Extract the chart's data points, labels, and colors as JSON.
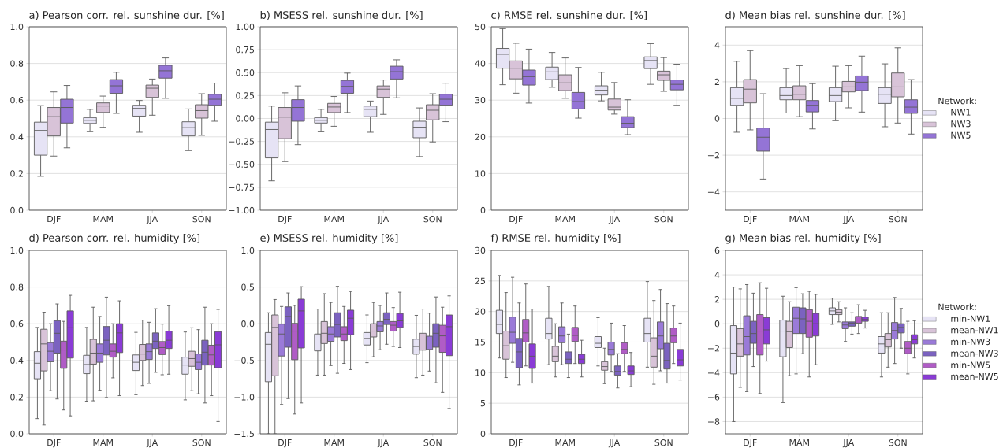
{
  "chart_data": [
    {
      "type": "box",
      "title": "a) Pearson corr. rel. sunshine dur. [%]",
      "categories": [
        "DJF",
        "MAM",
        "JJA",
        "SON"
      ],
      "ylim": [
        0,
        1
      ],
      "yticks": [
        {
          "value": 0,
          "label": "0.0"
        },
        {
          "value": 0.2,
          "label": "0.2"
        },
        {
          "value": 0.4,
          "label": "0.4"
        },
        {
          "value": 0.6,
          "label": "0.6"
        },
        {
          "value": 0.8,
          "label": "0.8"
        },
        {
          "value": 1,
          "label": "1.0"
        }
      ],
      "grid": "y",
      "series": [
        {
          "color": "#e6e3f5",
          "boxes": [
            {
              "low": 0.185,
              "q1": 0.3,
              "median": 0.435,
              "q3": 0.48,
              "high": 0.57
            },
            {
              "low": 0.428,
              "q1": 0.473,
              "median": 0.49,
              "q3": 0.505,
              "high": 0.55
            },
            {
              "low": 0.425,
              "q1": 0.513,
              "median": 0.555,
              "q3": 0.572,
              "high": 0.598
            },
            {
              "low": 0.325,
              "q1": 0.405,
              "median": 0.45,
              "q3": 0.482,
              "high": 0.552
            }
          ]
        },
        {
          "color": "#d8c3d8",
          "boxes": [
            {
              "low": 0.295,
              "q1": 0.405,
              "median": 0.51,
              "q3": 0.56,
              "high": 0.645
            },
            {
              "low": 0.452,
              "q1": 0.533,
              "median": 0.568,
              "q3": 0.585,
              "high": 0.622
            },
            {
              "low": 0.518,
              "q1": 0.615,
              "median": 0.665,
              "q3": 0.682,
              "high": 0.715
            },
            {
              "low": 0.408,
              "q1": 0.502,
              "median": 0.543,
              "q3": 0.575,
              "high": 0.635
            }
          ]
        },
        {
          "color": "#9474d6",
          "boxes": [
            {
              "low": 0.34,
              "q1": 0.475,
              "median": 0.56,
              "q3": 0.605,
              "high": 0.68
            },
            {
              "low": 0.528,
              "q1": 0.637,
              "median": 0.678,
              "q3": 0.712,
              "high": 0.752
            },
            {
              "low": 0.61,
              "q1": 0.72,
              "median": 0.76,
              "q3": 0.79,
              "high": 0.83
            },
            {
              "low": 0.485,
              "q1": 0.572,
              "median": 0.605,
              "q3": 0.632,
              "high": 0.693
            }
          ]
        }
      ]
    },
    {
      "type": "box",
      "title": "b) MSESS rel. sunshine dur. [%]",
      "categories": [
        "DJF",
        "MAM",
        "JJA",
        "SON"
      ],
      "ylim": [
        -1,
        1
      ],
      "yticks": [
        {
          "value": -1,
          "label": "−1.00"
        },
        {
          "value": -0.75,
          "label": "−0.75"
        },
        {
          "value": -0.5,
          "label": "−0.50"
        },
        {
          "value": -0.25,
          "label": "−0.25"
        },
        {
          "value": 0,
          "label": "0.00"
        },
        {
          "value": 0.25,
          "label": "0.25"
        },
        {
          "value": 0.5,
          "label": "0.50"
        },
        {
          "value": 0.75,
          "label": "0.75"
        },
        {
          "value": 1,
          "label": "1.00"
        }
      ],
      "grid": "y",
      "series": [
        {
          "color": "#e6e3f5",
          "boxes": [
            {
              "low": -0.68,
              "q1": -0.43,
              "median": -0.12,
              "q3": -0.04,
              "high": 0.135
            },
            {
              "low": -0.145,
              "q1": -0.05,
              "median": -0.02,
              "q3": 0.01,
              "high": 0.1
            },
            {
              "low": -0.15,
              "q1": 0.02,
              "median": 0.1,
              "q3": 0.135,
              "high": 0.19
            },
            {
              "low": -0.415,
              "q1": -0.21,
              "median": -0.095,
              "q3": -0.03,
              "high": 0.115
            }
          ]
        },
        {
          "color": "#d8c3d8",
          "boxes": [
            {
              "low": -0.47,
              "q1": -0.22,
              "median": 0.015,
              "q3": 0.12,
              "high": 0.28
            },
            {
              "low": -0.085,
              "q1": 0.065,
              "median": 0.125,
              "q3": 0.165,
              "high": 0.24
            },
            {
              "low": 0.045,
              "q1": 0.23,
              "median": 0.32,
              "q3": 0.355,
              "high": 0.42
            },
            {
              "low": -0.255,
              "q1": -0.015,
              "median": 0.09,
              "q3": 0.15,
              "high": 0.27
            }
          ]
        },
        {
          "color": "#9474d6",
          "boxes": [
            {
              "low": -0.285,
              "q1": -0.03,
              "median": 0.12,
              "q3": 0.205,
              "high": 0.355
            },
            {
              "low": 0.065,
              "q1": 0.275,
              "median": 0.35,
              "q3": 0.415,
              "high": 0.495
            },
            {
              "low": 0.225,
              "q1": 0.43,
              "median": 0.51,
              "q3": 0.57,
              "high": 0.64
            },
            {
              "low": -0.035,
              "q1": 0.145,
              "median": 0.21,
              "q3": 0.265,
              "high": 0.385
            }
          ]
        }
      ]
    },
    {
      "type": "box",
      "title": "c) RMSE rel. sunshine dur. [%]",
      "categories": [
        "DJF",
        "MAM",
        "JJA",
        "SON"
      ],
      "ylim": [
        0,
        50
      ],
      "yticks": [
        0,
        10,
        20,
        30,
        40,
        50
      ],
      "grid": "y",
      "series": [
        {
          "color": "#e6e3f5",
          "boxes": [
            {
              "low": 34.2,
              "q1": 38.7,
              "median": 42.5,
              "q3": 44.1,
              "high": 49.5
            },
            {
              "low": 33.5,
              "q1": 35.6,
              "median": 37.7,
              "q3": 39.0,
              "high": 43.0
            },
            {
              "low": 29.8,
              "q1": 31.4,
              "median": 32.7,
              "q3": 33.9,
              "high": 37.6
            },
            {
              "low": 34.3,
              "q1": 38.6,
              "median": 40.8,
              "q3": 41.8,
              "high": 45.4
            }
          ]
        },
        {
          "color": "#d8c3d8",
          "boxes": [
            {
              "low": 31.9,
              "q1": 35.8,
              "median": 38.7,
              "q3": 40.7,
              "high": 45.5
            },
            {
              "low": 30.5,
              "q1": 32.6,
              "median": 34.7,
              "q3": 36.9,
              "high": 41.5
            },
            {
              "low": 26.2,
              "q1": 27.3,
              "median": 28.1,
              "q3": 30.3,
              "high": 34.8
            },
            {
              "low": 32.4,
              "q1": 35.4,
              "median": 36.9,
              "q3": 37.9,
              "high": 41.6
            }
          ]
        },
        {
          "color": "#9474d6",
          "boxes": [
            {
              "low": 29.2,
              "q1": 34.1,
              "median": 36.4,
              "q3": 38.2,
              "high": 43.9
            },
            {
              "low": 25.1,
              "q1": 27.6,
              "median": 29.6,
              "q3": 32.1,
              "high": 38.9
            },
            {
              "low": 20.6,
              "q1": 22.5,
              "median": 23.7,
              "q3": 25.5,
              "high": 30.1
            },
            {
              "low": 28.6,
              "q1": 32.8,
              "median": 34.3,
              "q3": 35.5,
              "high": 39.8
            }
          ]
        }
      ]
    },
    {
      "type": "box",
      "title": "d) Mean bias rel. sunshine dur. [%]",
      "categories": [
        "DJF",
        "MAM",
        "JJA",
        "SON"
      ],
      "ylim": [
        -5,
        5
      ],
      "yticks": [
        {
          "value": -4,
          "label": "−4"
        },
        {
          "value": -2,
          "label": "−2"
        },
        {
          "value": 0,
          "label": "0"
        },
        {
          "value": 2,
          "label": "2"
        },
        {
          "value": 4,
          "label": "4"
        }
      ],
      "grid": "y",
      "legend": "right",
      "legend_title": "Network:",
      "series": [
        {
          "name": "NW1",
          "color": "#e6e3f5",
          "boxes": [
            {
              "low": -0.75,
              "q1": 0.72,
              "median": 1.1,
              "q3": 1.68,
              "high": 3.12
            },
            {
              "low": 0.3,
              "q1": 1.02,
              "median": 1.25,
              "q3": 1.68,
              "high": 2.72
            },
            {
              "low": -0.12,
              "q1": 0.92,
              "median": 1.25,
              "q3": 1.68,
              "high": 2.85
            },
            {
              "low": -0.45,
              "q1": 0.82,
              "median": 1.32,
              "q3": 1.68,
              "high": 2.98
            }
          ]
        },
        {
          "name": "NW3",
          "color": "#d8c3d8",
          "boxes": [
            {
              "low": -0.62,
              "q1": 0.85,
              "median": 1.6,
              "q3": 2.12,
              "high": 3.7
            },
            {
              "low": 0.1,
              "q1": 1.02,
              "median": 1.32,
              "q3": 1.78,
              "high": 2.88
            },
            {
              "low": 0.58,
              "q1": 1.45,
              "median": 1.72,
              "q3": 2.02,
              "high": 2.88
            },
            {
              "low": -0.25,
              "q1": 1.18,
              "median": 1.72,
              "q3": 2.48,
              "high": 3.85
            }
          ]
        },
        {
          "name": "NW5",
          "color": "#9474d6",
          "boxes": [
            {
              "low": -3.3,
              "q1": -1.78,
              "median": -1.02,
              "q3": -0.52,
              "high": 1.35
            },
            {
              "low": -0.57,
              "q1": 0.36,
              "median": 0.72,
              "q3": 0.98,
              "high": 1.9
            },
            {
              "low": 0.35,
              "q1": 1.52,
              "median": 1.98,
              "q3": 2.32,
              "high": 3.4
            },
            {
              "low": -0.85,
              "q1": 0.28,
              "median": 0.62,
              "q3": 1.02,
              "high": 2.12
            }
          ]
        }
      ]
    },
    {
      "type": "box",
      "title": "d) Pearson corr. rel. humidity [%]",
      "categories": [
        "DJF",
        "MAM",
        "JJA",
        "SON"
      ],
      "ylim": [
        0,
        1
      ],
      "yticks": [
        {
          "value": 0,
          "label": "0.0"
        },
        {
          "value": 0.2,
          "label": "0.2"
        },
        {
          "value": 0.4,
          "label": "0.4"
        },
        {
          "value": 0.6,
          "label": "0.6"
        },
        {
          "value": 0.8,
          "label": "0.8"
        },
        {
          "value": 1,
          "label": "1.0"
        }
      ],
      "grid": "y",
      "series": [
        {
          "color": "#e6e3f5",
          "boxes": [
            {
              "low": 0.083,
              "q1": 0.3,
              "median": 0.385,
              "q3": 0.448,
              "high": 0.58
            },
            {
              "low": 0.178,
              "q1": 0.328,
              "median": 0.378,
              "q3": 0.428,
              "high": 0.58
            },
            {
              "low": 0.213,
              "q1": 0.345,
              "median": 0.39,
              "q3": 0.43,
              "high": 0.553
            },
            {
              "low": 0.185,
              "q1": 0.325,
              "median": 0.375,
              "q3": 0.418,
              "high": 0.555
            }
          ]
        },
        {
          "color": "#d8c3d8",
          "boxes": [
            {
              "low": 0.048,
              "q1": 0.343,
              "median": 0.49,
              "q3": 0.57,
              "high": 0.663
            },
            {
              "low": 0.18,
              "q1": 0.38,
              "median": 0.44,
              "q3": 0.515,
              "high": 0.69
            },
            {
              "low": 0.263,
              "q1": 0.4,
              "median": 0.435,
              "q3": 0.487,
              "high": 0.62
            },
            {
              "low": 0.235,
              "q1": 0.368,
              "median": 0.41,
              "q3": 0.45,
              "high": 0.578
            }
          ]
        },
        {
          "color": "#9a7ad8",
          "boxes": [
            {
              "low": 0.235,
              "q1": 0.393,
              "median": 0.45,
              "q3": 0.497,
              "high": 0.6
            },
            {
              "low": 0.238,
              "q1": 0.39,
              "median": 0.44,
              "q3": 0.49,
              "high": 0.64
            },
            {
              "low": 0.275,
              "q1": 0.405,
              "median": 0.448,
              "q3": 0.49,
              "high": 0.608
            },
            {
              "low": 0.218,
              "q1": 0.35,
              "median": 0.39,
              "q3": 0.435,
              "high": 0.568
            }
          ]
        },
        {
          "color": "#7b62c0",
          "boxes": [
            {
              "low": 0.19,
              "q1": 0.44,
              "median": 0.548,
              "q3": 0.617,
              "high": 0.708
            },
            {
              "low": 0.198,
              "q1": 0.43,
              "median": 0.51,
              "q3": 0.585,
              "high": 0.745
            },
            {
              "low": 0.335,
              "q1": 0.465,
              "median": 0.505,
              "q3": 0.55,
              "high": 0.682
            },
            {
              "low": 0.168,
              "q1": 0.375,
              "median": 0.445,
              "q3": 0.51,
              "high": 0.69
            }
          ]
        },
        {
          "color": "#b05cc6",
          "boxes": [
            {
              "low": 0.13,
              "q1": 0.357,
              "median": 0.457,
              "q3": 0.505,
              "high": 0.613
            },
            {
              "low": 0.305,
              "q1": 0.418,
              "median": 0.45,
              "q3": 0.49,
              "high": 0.6
            },
            {
              "low": 0.322,
              "q1": 0.432,
              "median": 0.47,
              "q3": 0.503,
              "high": 0.598
            },
            {
              "low": 0.208,
              "q1": 0.375,
              "median": 0.43,
              "q3": 0.483,
              "high": 0.6
            }
          ]
        },
        {
          "color": "#8a3bd6",
          "boxes": [
            {
              "low": 0.098,
              "q1": 0.413,
              "median": 0.578,
              "q3": 0.67,
              "high": 0.755
            },
            {
              "low": 0.208,
              "q1": 0.443,
              "median": 0.55,
              "q3": 0.6,
              "high": 0.725
            },
            {
              "low": 0.325,
              "q1": 0.465,
              "median": 0.51,
              "q3": 0.56,
              "high": 0.698
            },
            {
              "low": 0.067,
              "q1": 0.36,
              "median": 0.485,
              "q3": 0.557,
              "high": 0.678
            }
          ]
        }
      ]
    },
    {
      "type": "box",
      "title": "e) MSESS rel. humidity [%]",
      "categories": [
        "DJF",
        "MAM",
        "JJA",
        "SON"
      ],
      "ylim": [
        -1.5,
        1
      ],
      "yticks": [
        {
          "value": -1.5,
          "label": "−1.5"
        },
        {
          "value": -1,
          "label": "−1.0"
        },
        {
          "value": -0.5,
          "label": "−0.5"
        },
        {
          "value": 0,
          "label": "0.0"
        },
        {
          "value": 0.5,
          "label": "0.5"
        },
        {
          "value": 1,
          "label": "1.0"
        }
      ],
      "grid": "y",
      "series": [
        {
          "color": "#e6e3f5",
          "boxes": [
            {
              "low": -1.5,
              "q1": -0.79,
              "median": -0.28,
              "q3": -0.12,
              "high": 0.15
            },
            {
              "low": -0.7,
              "q1": -0.37,
              "median": -0.25,
              "q3": -0.14,
              "high": 0.2
            },
            {
              "low": -0.53,
              "q1": -0.29,
              "median": -0.2,
              "q3": -0.12,
              "high": 0.12
            },
            {
              "low": -0.735,
              "q1": -0.415,
              "median": -0.31,
              "q3": -0.21,
              "high": 0.115
            }
          ]
        },
        {
          "color": "#d8c3d8",
          "boxes": [
            {
              "low": -1.5,
              "q1": -0.71,
              "median": -0.05,
              "q3": 0.12,
              "high": 0.33
            },
            {
              "low": -0.7,
              "q1": -0.27,
              "median": -0.13,
              "q3": 0.03,
              "high": 0.41
            },
            {
              "low": -0.45,
              "q1": -0.18,
              "median": -0.1,
              "q3": 0.0,
              "high": 0.29
            },
            {
              "low": -0.7,
              "q1": -0.36,
              "median": -0.25,
              "q3": -0.13,
              "high": 0.2
            }
          ]
        },
        {
          "color": "#9a7ad8",
          "boxes": [
            {
              "low": -1.1,
              "q1": -0.44,
              "median": -0.14,
              "q3": -0.005,
              "high": 0.235
            },
            {
              "low": -0.57,
              "q1": -0.24,
              "median": -0.14,
              "q3": -0.04,
              "high": 0.29
            },
            {
              "low": -0.355,
              "q1": -0.11,
              "median": -0.03,
              "q3": 0.03,
              "high": 0.25
            },
            {
              "low": -0.645,
              "q1": -0.35,
              "median": -0.25,
              "q3": -0.17,
              "high": 0.145
            }
          ]
        },
        {
          "color": "#7b62c0",
          "boxes": [
            {
              "low": -1.02,
              "q1": -0.32,
              "median": 0.1,
              "q3": 0.23,
              "high": 0.42
            },
            {
              "low": -0.675,
              "q1": -0.18,
              "median": -0.01,
              "q3": 0.15,
              "high": 0.51
            },
            {
              "low": -0.28,
              "q1": -0.01,
              "median": 0.06,
              "q3": 0.15,
              "high": 0.42
            },
            {
              "low": -0.805,
              "q1": -0.32,
              "median": -0.13,
              "q3": 0.0,
              "high": 0.365
            }
          ]
        },
        {
          "color": "#b05cc6",
          "boxes": [
            {
              "low": -1.23,
              "q1": -0.49,
              "median": -0.1,
              "q3": 0.005,
              "high": 0.25
            },
            {
              "low": -0.54,
              "q1": -0.23,
              "median": -0.14,
              "q3": -0.04,
              "high": 0.235
            },
            {
              "low": -0.31,
              "q1": -0.1,
              "median": -0.02,
              "q3": 0.03,
              "high": 0.22
            },
            {
              "low": -0.935,
              "q1": -0.39,
              "median": -0.165,
              "q3": -0.02,
              "high": 0.225
            }
          ]
        },
        {
          "color": "#8a3bd6",
          "boxes": [
            {
              "low": -1.08,
              "q1": -0.33,
              "median": 0.175,
              "q3": 0.335,
              "high": 0.505
            },
            {
              "low": -0.625,
              "q1": -0.15,
              "median": 0.075,
              "q3": 0.185,
              "high": 0.44
            },
            {
              "low": -0.325,
              "q1": -0.05,
              "median": 0.04,
              "q3": 0.14,
              "high": 0.43
            },
            {
              "low": -1.155,
              "q1": -0.435,
              "median": -0.04,
              "q3": 0.12,
              "high": 0.38
            }
          ]
        }
      ]
    },
    {
      "type": "box",
      "title": "f) RMSE rel. humidity [%]",
      "categories": [
        "DJF",
        "MAM",
        "JJA",
        "SON"
      ],
      "ylim": [
        0,
        30
      ],
      "yticks": [
        0,
        5,
        10,
        15,
        20,
        25,
        30
      ],
      "grid": "y",
      "series": [
        {
          "color": "#e6e3f5",
          "boxes": [
            {
              "low": 12.4,
              "q1": 16.4,
              "median": 17.9,
              "q3": 20.2,
              "high": 25.9
            },
            {
              "low": 11.3,
              "q1": 15.5,
              "median": 16.4,
              "q3": 18.9,
              "high": 24.1
            },
            {
              "low": 11.1,
              "q1": 14.1,
              "median": 14.8,
              "q3": 15.9,
              "high": 19.0
            },
            {
              "low": 10.9,
              "q1": 15.0,
              "median": 16.4,
              "q3": 18.9,
              "high": 24.9
            }
          ]
        },
        {
          "color": "#d8c3d8",
          "boxes": [
            {
              "low": 9.2,
              "q1": 12.2,
              "median": 14.4,
              "q3": 16.8,
              "high": 23.1
            },
            {
              "low": 9.3,
              "q1": 11.8,
              "median": 12.7,
              "q3": 14.3,
              "high": 18.0
            },
            {
              "low": 8.2,
              "q1": 10.4,
              "median": 11.0,
              "q3": 11.8,
              "high": 14.0
            },
            {
              "low": 8.1,
              "q1": 10.9,
              "median": 12.7,
              "q3": 15.7,
              "high": 21.8
            }
          ]
        },
        {
          "color": "#9a7ad8",
          "boxes": [
            {
              "low": 11.7,
              "q1": 14.8,
              "median": 16.6,
              "q3": 19.1,
              "high": 25.6
            },
            {
              "low": 11.3,
              "q1": 14.9,
              "median": 16.0,
              "q3": 17.5,
              "high": 21.4
            },
            {
              "low": 10.2,
              "q1": 12.9,
              "median": 13.8,
              "q3": 15.0,
              "high": 18.1
            },
            {
              "low": 10.3,
              "q1": 13.9,
              "median": 16.0,
              "q3": 18.3,
              "high": 23.6
            }
          ]
        },
        {
          "color": "#7b62c0",
          "boxes": [
            {
              "low": 8.0,
              "q1": 10.8,
              "median": 13.4,
              "q3": 15.6,
              "high": 21.4
            },
            {
              "low": 9.2,
              "q1": 11.5,
              "median": 12.2,
              "q3": 13.4,
              "high": 16.3
            },
            {
              "low": 7.5,
              "q1": 9.6,
              "median": 10.2,
              "q3": 11.1,
              "high": 13.1
            },
            {
              "low": 8.3,
              "q1": 10.6,
              "median": 12.0,
              "q3": 14.8,
              "high": 21.3
            }
          ]
        },
        {
          "color": "#b05cc6",
          "boxes": [
            {
              "low": 11.1,
              "q1": 15.0,
              "median": 16.5,
              "q3": 18.7,
              "high": 24.5
            },
            {
              "low": 11.5,
              "q1": 15.1,
              "median": 16.1,
              "q3": 17.4,
              "high": 20.9
            },
            {
              "low": 10.2,
              "q1": 13.1,
              "median": 13.8,
              "q3": 14.9,
              "high": 17.7
            },
            {
              "low": 11.5,
              "q1": 14.9,
              "median": 16.0,
              "q3": 17.3,
              "high": 20.9
            }
          ]
        },
        {
          "color": "#8a3bd6",
          "boxes": [
            {
              "low": 8.3,
              "q1": 10.7,
              "median": 12.7,
              "q3": 14.7,
              "high": 20.4
            },
            {
              "low": 9.3,
              "q1": 11.5,
              "median": 12.2,
              "q3": 13.0,
              "high": 15.3
            },
            {
              "low": 7.7,
              "q1": 9.7,
              "median": 10.3,
              "q3": 11.1,
              "high": 13.3
            },
            {
              "low": 8.8,
              "q1": 11.1,
              "median": 12.1,
              "q3": 13.8,
              "high": 18.1
            }
          ]
        }
      ]
    },
    {
      "type": "box",
      "title": "g) Mean bias rel. humidity [%]",
      "categories": [
        "DJF",
        "MAM",
        "JJA",
        "SON"
      ],
      "ylim": [
        -9,
        6
      ],
      "yticks": [
        {
          "value": -8,
          "label": "−8"
        },
        {
          "value": -6,
          "label": "−6"
        },
        {
          "value": -4,
          "label": "−4"
        },
        {
          "value": -2,
          "label": "−2"
        },
        {
          "value": 0,
          "label": "0"
        },
        {
          "value": 2,
          "label": "2"
        },
        {
          "value": 4,
          "label": "4"
        },
        {
          "value": 6,
          "label": "6"
        }
      ],
      "grid": "y",
      "legend": "right",
      "legend_title": "Network:",
      "series": [
        {
          "name": "min-NW1",
          "color": "#e6e3f5",
          "boxes": [
            {
              "low": -8.0,
              "q1": -4.1,
              "median": -2.4,
              "q3": -0.15,
              "high": 3.0
            },
            {
              "low": -6.45,
              "q1": -2.7,
              "median": -0.6,
              "q3": 0.3,
              "high": 2.25
            },
            {
              "low": -0.05,
              "q1": 0.75,
              "median": 1.05,
              "q3": 1.3,
              "high": 2.1
            },
            {
              "low": -4.35,
              "q1": -2.4,
              "median": -1.65,
              "q3": -1.05,
              "high": 0.9
            }
          ]
        },
        {
          "name": "mean-NW1",
          "color": "#d8c3d8",
          "boxes": [
            {
              "low": -5.2,
              "q1": -2.65,
              "median": -1.65,
              "q3": -0.4,
              "high": 2.85
            },
            {
              "low": -4.25,
              "q1": -1.95,
              "median": -0.65,
              "q3": 0.2,
              "high": 1.8
            },
            {
              "low": 0.15,
              "q1": 0.75,
              "median": 0.95,
              "q3": 1.15,
              "high": 1.8
            },
            {
              "low": -3.55,
              "q1": -1.9,
              "median": -1.3,
              "q3": -0.8,
              "high": 0.9
            }
          ]
        },
        {
          "name": "min-NW3",
          "color": "#9a7ad8",
          "boxes": [
            {
              "low": -5.55,
              "q1": -2.55,
              "median": -1.05,
              "q3": 0.65,
              "high": 3.2
            },
            {
              "low": -4.1,
              "q1": -0.8,
              "median": 0.45,
              "q3": 1.35,
              "high": 2.95
            },
            {
              "low": -1.45,
              "q1": -0.4,
              "median": -0.1,
              "q3": 0.15,
              "high": 1.3
            },
            {
              "low": -3.25,
              "q1": -1.25,
              "median": -0.55,
              "q3": 0.1,
              "high": 2.15
            }
          ]
        },
        {
          "name": "mean-NW3",
          "color": "#7b62c0",
          "boxes": [
            {
              "low": -3.5,
              "q1": -1.6,
              "median": -0.8,
              "q3": 0.2,
              "high": 2.5
            },
            {
              "low": -2.45,
              "q1": -0.8,
              "median": 0.4,
              "q3": 1.3,
              "high": 2.45
            },
            {
              "low": -0.85,
              "q1": -0.2,
              "median": 0.05,
              "q3": 0.15,
              "high": 0.9
            },
            {
              "low": -2.0,
              "q1": -0.75,
              "median": -0.3,
              "q3": 0.0,
              "high": 1.25
            }
          ]
        },
        {
          "name": "min-NW5",
          "color": "#b05cc6",
          "boxes": [
            {
              "low": -5.7,
              "q1": -2.55,
              "median": -0.6,
              "q3": 0.75,
              "high": 3.35
            },
            {
              "low": -4.35,
              "q1": -1.1,
              "median": 0.2,
              "q3": 1.15,
              "high": 2.65
            },
            {
              "low": -0.8,
              "q1": 0.05,
              "median": 0.3,
              "q3": 0.6,
              "high": 1.55
            },
            {
              "low": -4.1,
              "q1": -2.45,
              "median": -2.0,
              "q3": -1.45,
              "high": 0.2
            }
          ]
        },
        {
          "name": "mean-NW5",
          "color": "#8a3bd6",
          "boxes": [
            {
              "low": -3.05,
              "q1": -1.65,
              "median": -0.5,
              "q3": 0.5,
              "high": 2.9
            },
            {
              "low": -3.35,
              "q1": -1.0,
              "median": 0.0,
              "q3": 0.85,
              "high": 2.4
            },
            {
              "low": -0.35,
              "q1": 0.2,
              "median": 0.35,
              "q3": 0.55,
              "high": 1.1
            },
            {
              "low": -2.8,
              "q1": -1.65,
              "median": -1.3,
              "q3": -0.9,
              "high": 0.25
            }
          ]
        }
      ]
    }
  ]
}
